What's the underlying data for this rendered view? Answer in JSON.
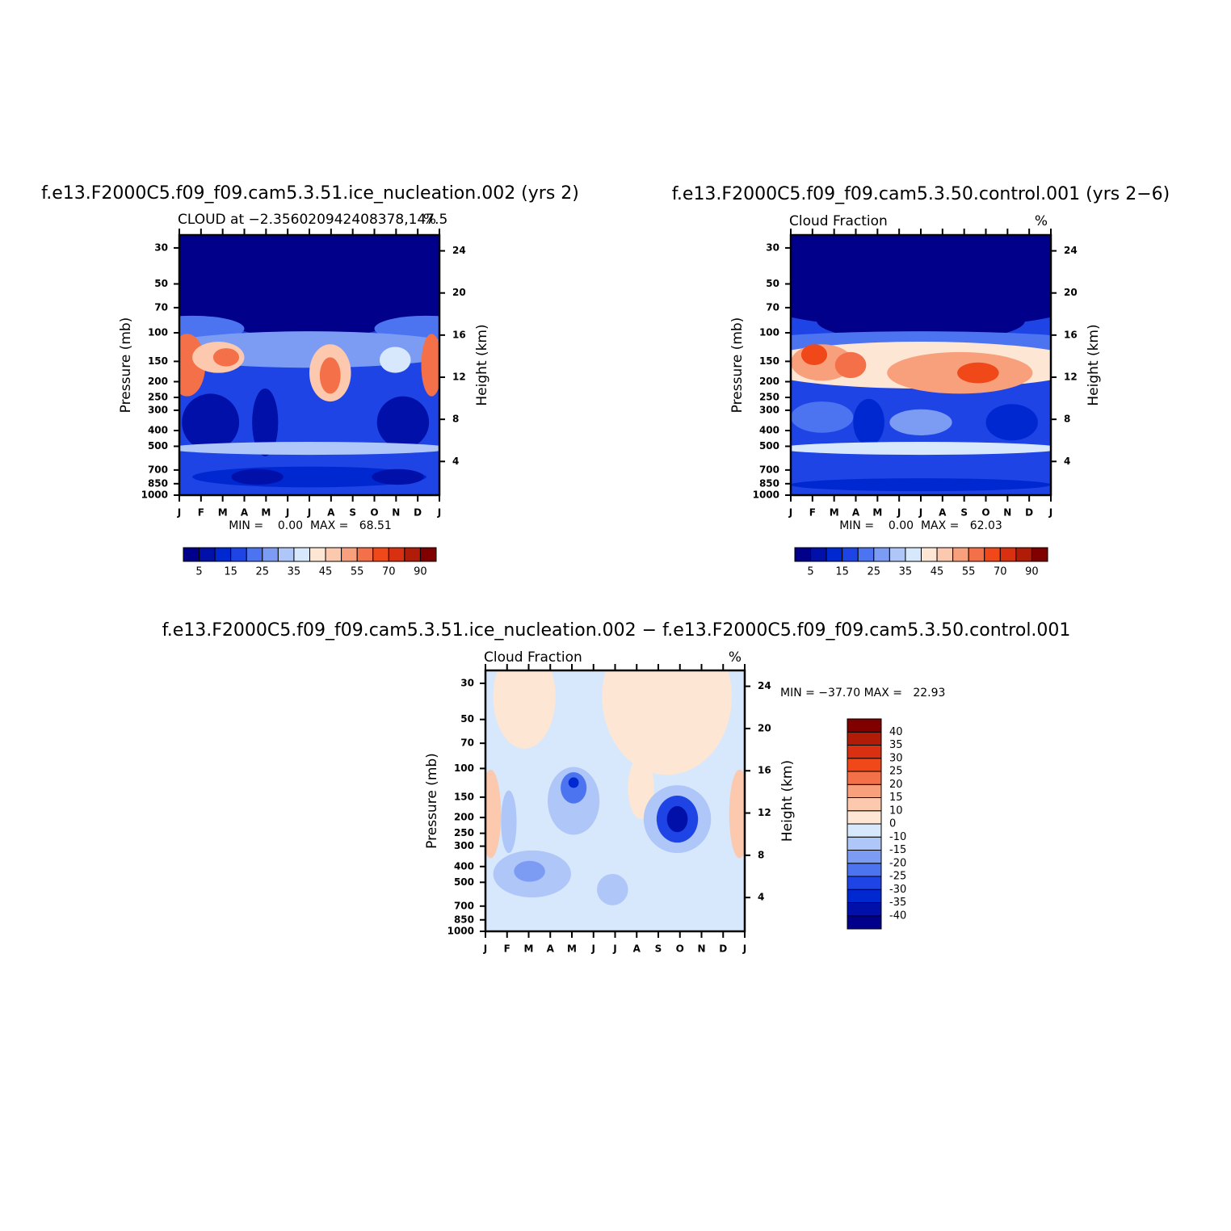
{
  "chart_data": [
    {
      "type": "contour",
      "title": "f.e13.F2000C5.f09_f09.cam5.3.51.ice_nucleation.002 (yrs 2)",
      "subtitle": "CLOUD at −2.356020942408378,147.5",
      "units": "%",
      "ylabel": "Pressure (mb)",
      "y2label": "Height (km)",
      "categories": [
        "J",
        "F",
        "M",
        "A",
        "M",
        "J",
        "J",
        "A",
        "S",
        "O",
        "N",
        "D",
        "J"
      ],
      "ylim": [
        1000,
        25
      ],
      "ylog": true,
      "yticks": [
        30,
        50,
        70,
        100,
        150,
        200,
        250,
        300,
        400,
        500,
        700,
        850,
        1000
      ],
      "y2lim": [
        0.8,
        25.5
      ],
      "y2ticks": [
        4,
        8,
        12,
        16,
        20,
        24
      ],
      "stats": "MIN =    0.00  MAX =   68.51",
      "colorbar": {
        "orientation": "horizontal",
        "levels": [
          5,
          15,
          25,
          35,
          45,
          55,
          70,
          90
        ],
        "colors": [
          "#00008a",
          "#0010a8",
          "#0028d0",
          "#1e44e6",
          "#4c74f0",
          "#7c9cf4",
          "#aec6f8",
          "#d8e8fc",
          "#fde6d4",
          "#fcc8ae",
          "#f8a07c",
          "#f47048",
          "#f04818",
          "#d83010",
          "#b01c08",
          "#800000"
        ]
      }
    },
    {
      "type": "contour",
      "title": "f.e13.F2000C5.f09_f09.cam5.3.50.control.001 (yrs 2−6)",
      "subtitle": "Cloud Fraction",
      "units": "%",
      "ylabel": "Pressure (mb)",
      "y2label": "Height (km)",
      "categories": [
        "J",
        "F",
        "M",
        "A",
        "M",
        "J",
        "J",
        "A",
        "S",
        "O",
        "N",
        "D",
        "J"
      ],
      "ylim": [
        1000,
        25
      ],
      "ylog": true,
      "yticks": [
        30,
        50,
        70,
        100,
        150,
        200,
        250,
        300,
        400,
        500,
        700,
        850,
        1000
      ],
      "y2lim": [
        0.8,
        25.5
      ],
      "y2ticks": [
        4,
        8,
        12,
        16,
        20,
        24
      ],
      "stats": "MIN =    0.00  MAX =   62.03",
      "colorbar": {
        "orientation": "horizontal",
        "levels": [
          5,
          15,
          25,
          35,
          45,
          55,
          70,
          90
        ],
        "colors": [
          "#00008a",
          "#0010a8",
          "#0028d0",
          "#1e44e6",
          "#4c74f0",
          "#7c9cf4",
          "#aec6f8",
          "#d8e8fc",
          "#fde6d4",
          "#fcc8ae",
          "#f8a07c",
          "#f47048",
          "#f04818",
          "#d83010",
          "#b01c08",
          "#800000"
        ]
      }
    },
    {
      "type": "contour",
      "title": "f.e13.F2000C5.f09_f09.cam5.3.51.ice_nucleation.002 − f.e13.F2000C5.f09_f09.cam5.3.50.control.001",
      "subtitle": "Cloud Fraction",
      "units": "%",
      "ylabel": "Pressure (mb)",
      "y2label": "Height (km)",
      "categories": [
        "J",
        "F",
        "M",
        "A",
        "M",
        "J",
        "J",
        "A",
        "S",
        "O",
        "N",
        "D",
        "J"
      ],
      "ylim": [
        1000,
        25
      ],
      "ylog": true,
      "yticks": [
        30,
        50,
        70,
        100,
        150,
        200,
        250,
        300,
        400,
        500,
        700,
        850,
        1000
      ],
      "y2lim": [
        0.8,
        25.5
      ],
      "y2ticks": [
        4,
        8,
        12,
        16,
        20,
        24
      ],
      "stats": "MIN = −37.70 MAX =   22.93",
      "colorbar": {
        "orientation": "vertical",
        "levels": [
          -40,
          -35,
          -30,
          -25,
          -20,
          -15,
          -10,
          0,
          10,
          15,
          20,
          25,
          30,
          35,
          40
        ],
        "colors": [
          "#00008a",
          "#0010a8",
          "#0028d0",
          "#1e44e6",
          "#4c74f0",
          "#7c9cf4",
          "#aec6f8",
          "#d8e8fc",
          "#fde6d4",
          "#fcc8ae",
          "#f8a07c",
          "#f47048",
          "#f04818",
          "#d83010",
          "#b01c08",
          "#800000"
        ]
      }
    }
  ]
}
